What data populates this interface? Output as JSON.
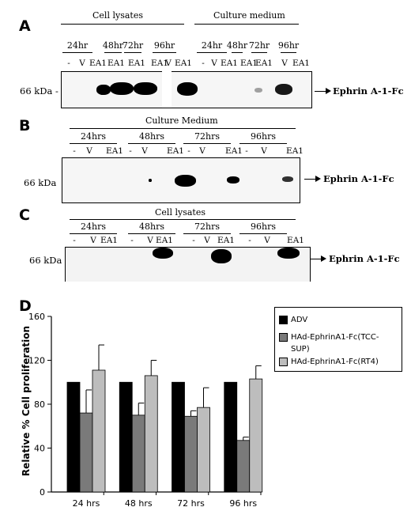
{
  "panelA": {
    "label": "A",
    "groups": [
      "Cell lysates",
      "Culture medium"
    ],
    "times": [
      "24hr",
      "48hr",
      "72hr",
      "96hr",
      "24hr",
      "48hr",
      "72hr",
      "96hr"
    ],
    "lanes": [
      "-",
      "V",
      "EA1",
      "EA1",
      "EA1",
      "EA1",
      "V",
      "EA1",
      "-",
      "V",
      "EA1",
      "EA1",
      "EA1",
      "V",
      "EA1"
    ],
    "marker": "66 kDa -",
    "arrow_label": "Ephrin A-1-Fc"
  },
  "panelB": {
    "label": "B",
    "group": "Culture Medium",
    "times": [
      "24hrs",
      "48hrs",
      "72hrs",
      "96hrs"
    ],
    "lanes": [
      "-",
      "V",
      "EA1",
      "-",
      "V",
      "EA1",
      "-",
      "V",
      "EA1",
      "-",
      "V",
      "EA1"
    ],
    "marker": "66 kDa",
    "arrow_label": "Ephrin A-1-Fc"
  },
  "panelC": {
    "label": "C",
    "group": "Cell lysates",
    "times": [
      "24hrs",
      "48hrs",
      "72hrs",
      "96hrs"
    ],
    "lanes": [
      "-",
      "V",
      "EA1",
      "-",
      "V",
      "EA1",
      "-",
      "V",
      "EA1",
      "-",
      "V",
      "EA1"
    ],
    "marker": "66 kDa",
    "arrow_label": "Ephrin A-1-Fc"
  },
  "panelD": {
    "label": "D",
    "legend": [
      "ADV",
      "HAd-EphrinA1-Fc(TCC-SUP)",
      "HAd-EphrinA1-Fc(RT4)"
    ]
  },
  "chart_data": {
    "type": "bar",
    "ylabel": "Relative % Cell proliferation",
    "categories": [
      "24 hrs",
      "48 hrs",
      "72 hrs",
      "96 hrs"
    ],
    "ylim": [
      0,
      160
    ],
    "yticks": [
      0,
      40,
      80,
      120,
      160
    ],
    "series": [
      {
        "name": "ADV",
        "values": [
          100,
          100,
          100,
          100
        ],
        "errors": [
          0,
          0,
          0,
          0
        ],
        "color": "#000000"
      },
      {
        "name": "HAd-EphrinA1-Fc(TCC-SUP)",
        "values": [
          72,
          70,
          69,
          47
        ],
        "errors": [
          21,
          11,
          5,
          3
        ],
        "color": "#7a7a7a"
      },
      {
        "name": "HAd-EphrinA1-Fc(RT4)",
        "values": [
          111,
          106,
          77,
          103
        ],
        "errors": [
          23,
          14,
          18,
          12
        ],
        "color": "#bdbdbd"
      }
    ],
    "legend_position": "top-right"
  }
}
